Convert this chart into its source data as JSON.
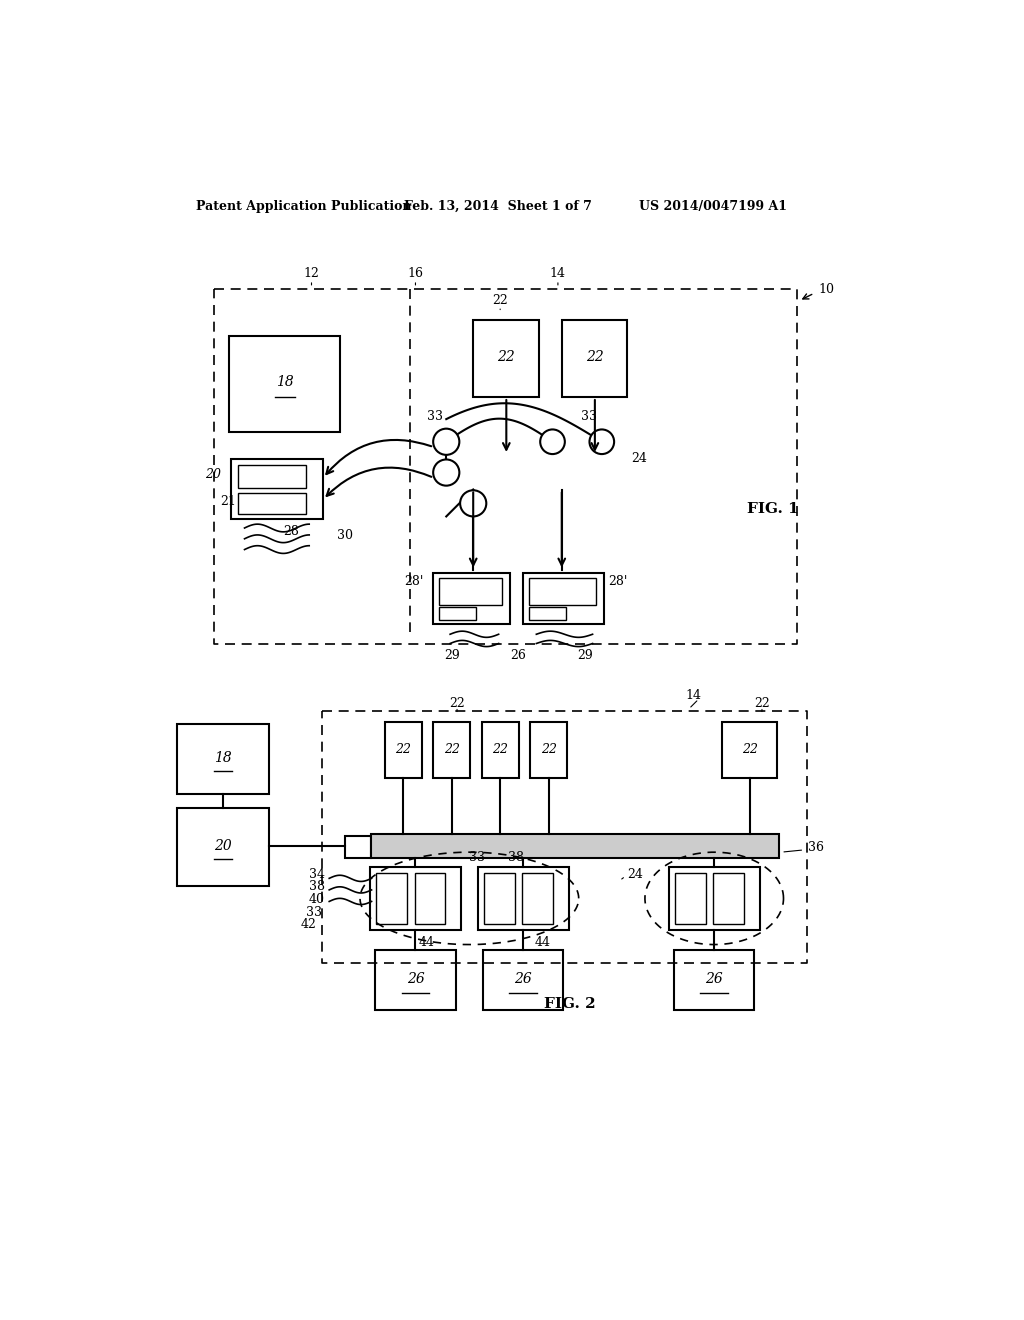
{
  "bg_color": "#ffffff",
  "header_left": "Patent Application Publication",
  "header_mid": "Feb. 13, 2014  Sheet 1 of 7",
  "header_right": "US 2014/0047199 A1",
  "fig1_label": "FIG. 1",
  "fig2_label": "FIG. 2"
}
